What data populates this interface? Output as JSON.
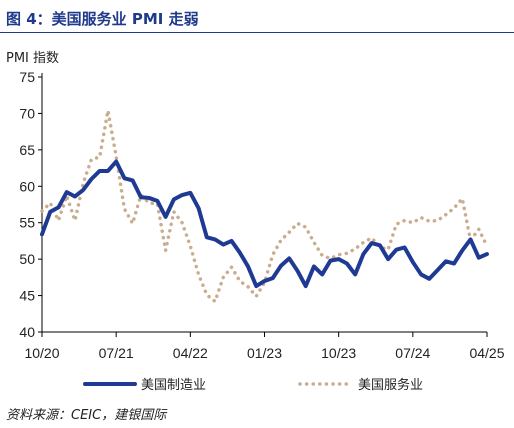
{
  "header": {
    "title": "图 4：美国服务业 PMI 走弱"
  },
  "footer": {
    "source": "资料来源：CEIC，建银国际"
  },
  "chart_data": {
    "type": "line",
    "title": "图 4：美国服务业 PMI 走弱",
    "ylabel": "PMI 指数",
    "xlabel": "",
    "ylim": [
      40,
      75
    ],
    "yticks": [
      40,
      45,
      50,
      55,
      60,
      65,
      70,
      75
    ],
    "xticks": [
      {
        "label": "10/20",
        "index": 0
      },
      {
        "label": "07/21",
        "index": 9
      },
      {
        "label": "04/22",
        "index": 18
      },
      {
        "label": "01/23",
        "index": 27
      },
      {
        "label": "10/23",
        "index": 36
      },
      {
        "label": "07/24",
        "index": 45
      },
      {
        "label": "04/25",
        "index": 54
      }
    ],
    "grid": false,
    "legend_position": "bottom",
    "x": [
      "10/20",
      "11/20",
      "12/20",
      "01/21",
      "02/21",
      "03/21",
      "04/21",
      "05/21",
      "06/21",
      "07/21",
      "08/21",
      "09/21",
      "10/21",
      "11/21",
      "12/21",
      "01/22",
      "02/22",
      "03/22",
      "04/22",
      "05/22",
      "06/22",
      "07/22",
      "08/22",
      "09/22",
      "10/22",
      "11/22",
      "12/22",
      "01/23",
      "02/23",
      "03/23",
      "04/23",
      "05/23",
      "06/23",
      "07/23",
      "08/23",
      "09/23",
      "10/23",
      "11/23",
      "12/23",
      "01/24",
      "02/24",
      "03/24",
      "04/24",
      "05/24",
      "06/24",
      "07/24",
      "08/24",
      "09/24",
      "10/24",
      "11/24",
      "12/24",
      "01/25",
      "02/25",
      "03/25",
      "04/25"
    ],
    "series": [
      {
        "name": "美国制造业",
        "color": "#1f3a93",
        "style": "solid",
        "values": [
          53.4,
          56.5,
          57.1,
          59.2,
          58.6,
          59.5,
          61.0,
          62.1,
          62.1,
          63.4,
          61.1,
          60.8,
          58.5,
          58.4,
          58.0,
          55.8,
          58.2,
          58.8,
          59.1,
          57.0,
          53.0,
          52.7,
          52.0,
          52.5,
          50.9,
          49.0,
          46.3,
          47.0,
          47.4,
          49.1,
          50.1,
          48.4,
          46.3,
          49.0,
          47.9,
          49.8,
          50.0,
          49.4,
          47.9,
          50.7,
          52.2,
          51.9,
          50.0,
          51.3,
          51.6,
          49.6,
          47.9,
          47.3,
          48.5,
          49.7,
          49.4,
          51.2,
          52.7,
          50.2,
          50.7
        ]
      },
      {
        "name": "美国服务业",
        "color": "#c9ad8e",
        "style": "dotted",
        "values": [
          56.6,
          57.7,
          55.3,
          58.7,
          55.3,
          60.4,
          63.7,
          64.0,
          70.4,
          64.1,
          56.9,
          54.9,
          58.8,
          57.7,
          57.6,
          51.2,
          56.5,
          55.0,
          51.8,
          47.9,
          45.1,
          44.2,
          47.5,
          48.9,
          47.0,
          46.2,
          44.9,
          46.8,
          50.6,
          52.6,
          53.7,
          54.9,
          54.4,
          52.3,
          50.5,
          50.1,
          50.6,
          50.8,
          51.4,
          52.3,
          52.9,
          51.7,
          51.3,
          54.8,
          55.3,
          55.0,
          55.7,
          55.2,
          55.3,
          56.1,
          57.0,
          58.3,
          52.6,
          54.1,
          51.8
        ]
      }
    ]
  }
}
